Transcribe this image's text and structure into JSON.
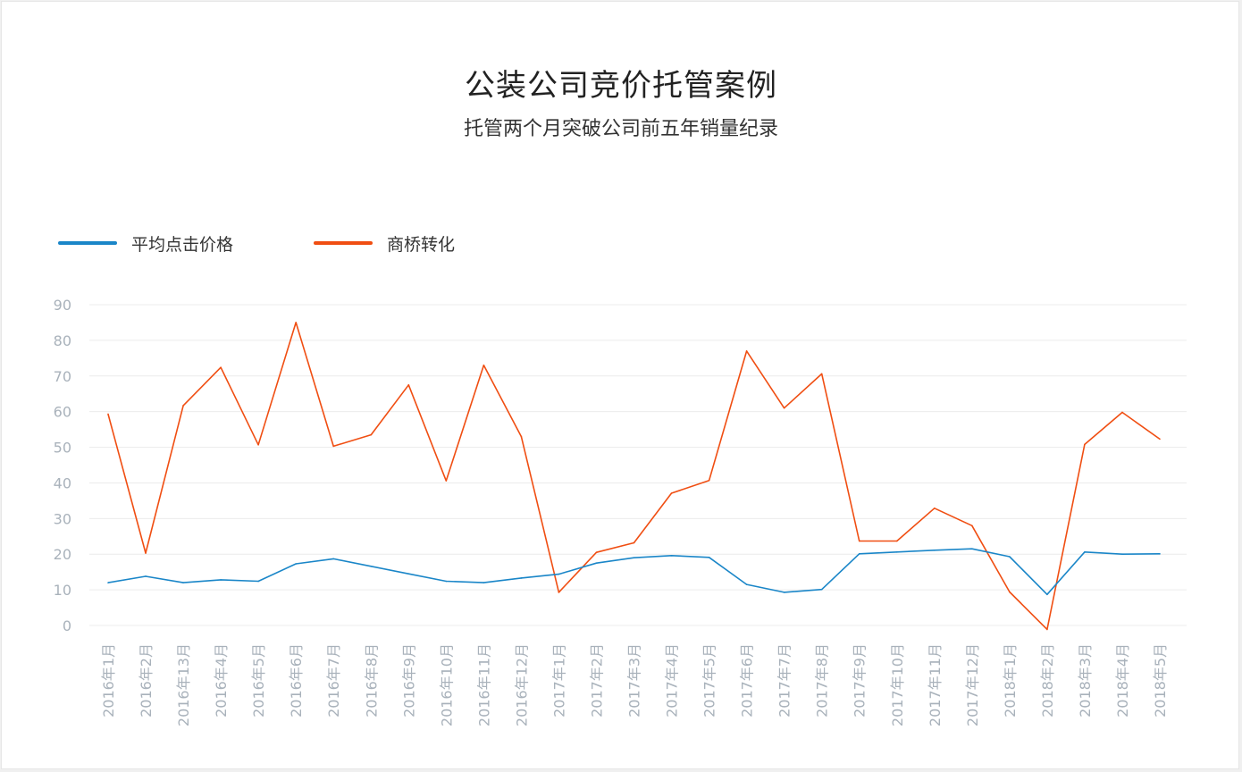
{
  "header": {
    "title": "公装公司竞价托管案例",
    "subtitle": "托管两个月突破公司前五年销量纪录"
  },
  "chart_data": {
    "type": "line",
    "categories": [
      "2016年1月",
      "2016年2月",
      "2016年13月",
      "2016年4月",
      "2016年5月",
      "2016年6月",
      "2016年7月",
      "2016年8月",
      "2016年9月",
      "2016年10月",
      "2016年11月",
      "2016年12月",
      "2017年1月",
      "2017年2月",
      "2017年3月",
      "2017年4月",
      "2017年5月",
      "2017年6月",
      "2017年7月",
      "2017年8月",
      "2017年9月",
      "2017年10月",
      "2017年11月",
      "2017年12月",
      "2018年1月",
      "2018年2月",
      "2018年3月",
      "2018年4月",
      "2018年5月"
    ],
    "series": [
      {
        "name": "平均点击价格",
        "color": "#1a86c8",
        "values": [
          12,
          13.8,
          12,
          12.8,
          12.4,
          17.3,
          18.7,
          16.6,
          14.5,
          12.4,
          12,
          13.3,
          14.4,
          17.5,
          19,
          19.6,
          19.1,
          11.5,
          9.3,
          10.1,
          20.1,
          20.6,
          21.1,
          21.5,
          19.3,
          8.7,
          20.6,
          20,
          20.1
        ]
      },
      {
        "name": "商桥转化",
        "color": "#f04e12",
        "values": [
          59.3,
          20.3,
          61.7,
          72.4,
          50.7,
          85,
          50.3,
          53.5,
          67.5,
          40.6,
          73,
          53,
          9.3,
          20.5,
          23.2,
          37.1,
          40.7,
          77,
          61,
          70.6,
          23.7,
          23.7,
          32.9,
          28,
          9.4,
          -1.1,
          50.8,
          59.8,
          52.3
        ]
      }
    ],
    "yticks": [
      0,
      10,
      20,
      30,
      40,
      50,
      60,
      70,
      80,
      90
    ],
    "ylim": [
      0,
      90
    ],
    "grid": true,
    "legend": "top-left",
    "xlabel": "",
    "ylabel": ""
  }
}
